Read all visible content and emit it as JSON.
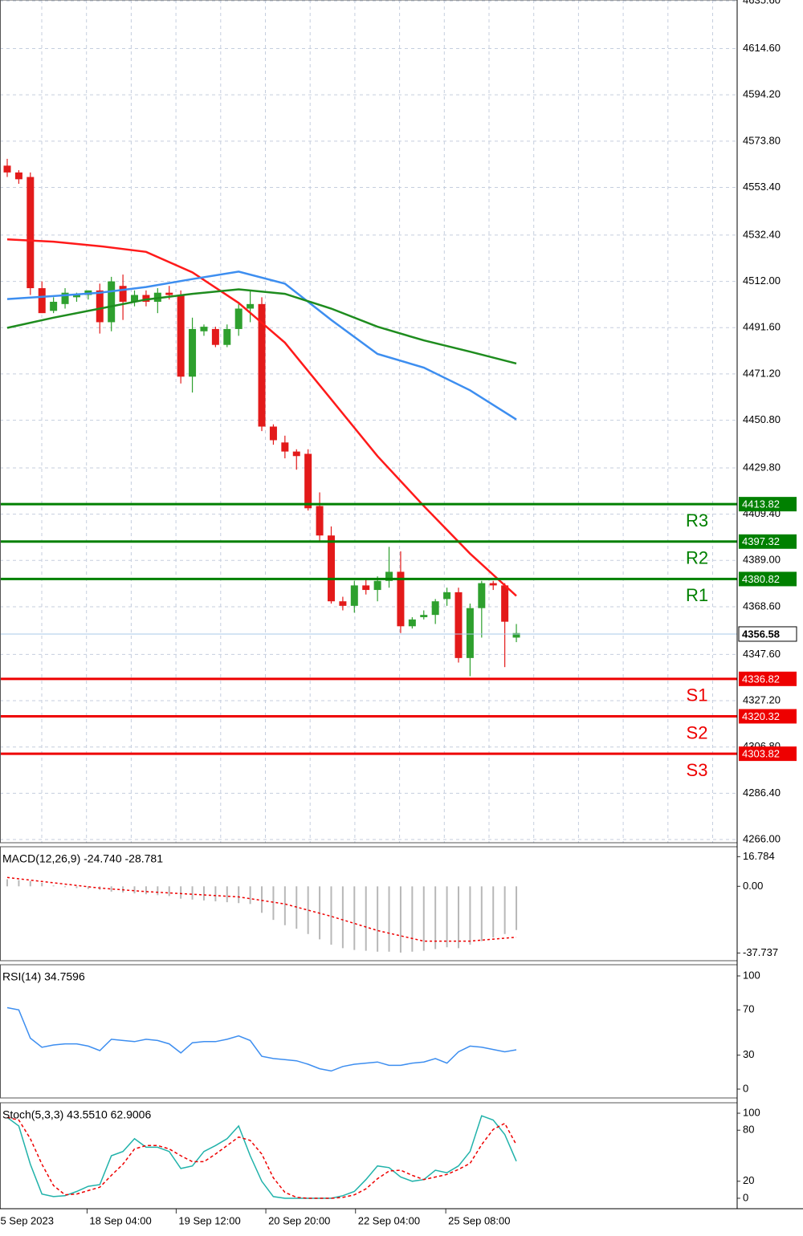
{
  "chart_data": [
    {
      "type": "candlestick",
      "open": [
        4563,
        4560,
        4558,
        4509,
        4499,
        4502,
        4505,
        4506,
        4508,
        4494,
        4510,
        4503,
        4506,
        4503,
        4507,
        4506,
        4470,
        4490,
        4491,
        4484,
        4491,
        4500,
        4502,
        4448,
        4441,
        4437,
        4436,
        4413,
        4400,
        4371,
        4369,
        4378,
        4376,
        4380,
        4384,
        4360,
        4364,
        4365,
        4372,
        4375,
        4346,
        4368,
        4379,
        4378,
        4355
      ],
      "high": [
        4566,
        4561,
        4560,
        4512,
        4505,
        4509,
        4507,
        4508,
        4511,
        4514,
        4515,
        4508,
        4508,
        4509,
        4510,
        4508,
        4496,
        4493,
        4492,
        4493,
        4503,
        4508,
        4505,
        4449,
        4444,
        4438,
        4438,
        4419,
        4404,
        4373,
        4380,
        4381,
        4382,
        4395,
        4393,
        4364,
        4367,
        4372,
        4377,
        4377,
        4370,
        4380,
        4380,
        4379,
        4361
      ],
      "low": [
        4558,
        4555,
        4506,
        4498,
        4498,
        4500,
        4503,
        4504,
        4489,
        4490,
        4495,
        4501,
        4501,
        4498,
        4504,
        4467,
        4463,
        4488,
        4483,
        4483,
        4488,
        4494,
        4446,
        4440,
        4434,
        4429,
        4411,
        4397,
        4370,
        4367,
        4366,
        4374,
        4371,
        4377,
        4357,
        4359,
        4363,
        4361,
        4369,
        4344,
        4338,
        4355,
        4376,
        4342,
        4353
      ],
      "close": [
        4560,
        4557,
        4509,
        4498,
        4503,
        4507,
        4506,
        4508,
        4494,
        4512,
        4503,
        4506,
        4503,
        4507,
        4506,
        4470,
        4491,
        4492,
        4484,
        4491,
        4500,
        4502,
        4448,
        4442,
        4437,
        4435,
        4412,
        4400,
        4371,
        4369,
        4378,
        4376,
        4380,
        4384,
        4360,
        4363,
        4365,
        4371,
        4375,
        4346,
        4368,
        4379,
        4378,
        4362,
        4357
      ],
      "up_color": "#2ea02e",
      "down_color": "#e31a1a",
      "ma_x": [
        0,
        4,
        8,
        12,
        16,
        20,
        24,
        28,
        32,
        36,
        40,
        44
      ],
      "overlays": [
        {
          "color": "#ff1a1a",
          "values": [
            4530.5,
            4529.5,
            4527.5,
            4525,
            4516,
            4502.5,
            4485,
            4460,
            4435,
            4413,
            4392,
            4373.4
          ]
        },
        {
          "color": "#3d8ef0",
          "values": [
            4504.2,
            4505.5,
            4507,
            4509.5,
            4513,
            4516.3,
            4511,
            4495,
            4480,
            4474,
            4464,
            4451.1
          ]
        },
        {
          "color": "#1e8c1e",
          "values": [
            4491.5,
            4496,
            4500,
            4504,
            4506.5,
            4508.5,
            4506.5,
            4500,
            4492,
            4486,
            4481,
            4475.8
          ]
        }
      ],
      "levels": [
        {
          "name": "R3",
          "value": 4413.82,
          "color": "#008000"
        },
        {
          "name": "R2",
          "value": 4397.32,
          "color": "#008000"
        },
        {
          "name": "R1",
          "value": 4380.82,
          "color": "#008000"
        },
        {
          "name": "S1",
          "value": 4336.82,
          "color": "#ee0000"
        },
        {
          "name": "S2",
          "value": 4320.32,
          "color": "#ee0000"
        },
        {
          "name": "S3",
          "value": 4303.82,
          "color": "#ee0000"
        }
      ],
      "last_price": 4356.58,
      "ylim": [
        4264.6,
        4636.0
      ],
      "yticks": [
        {
          "value": 4635.6,
          "label": "4635.60"
        },
        {
          "value": 4614.6,
          "label": "4614.60"
        },
        {
          "value": 4594.2,
          "label": "4594.20"
        },
        {
          "value": 4573.8,
          "label": "4573.80"
        },
        {
          "value": 4553.4,
          "label": "4553.40"
        },
        {
          "value": 4532.4,
          "label": "4532.40"
        },
        {
          "value": 4512,
          "label": "4512.00"
        },
        {
          "value": 4491.6,
          "label": "4491.60"
        },
        {
          "value": 4471.2,
          "label": "4471.20"
        },
        {
          "value": 4450.8,
          "label": "4450.80"
        },
        {
          "value": 4429.8,
          "label": "4429.80"
        },
        {
          "value": 4409.4,
          "label": "4409.40"
        },
        {
          "value": 4389,
          "label": "4389.00"
        },
        {
          "value": 4368.6,
          "label": "4368.60"
        },
        {
          "value": 4347.6,
          "label": "4347.60"
        },
        {
          "value": 4327.2,
          "label": "4327.20"
        },
        {
          "value": 4306.8,
          "label": "4306.80"
        },
        {
          "value": 4286.4,
          "label": "4286.40"
        },
        {
          "value": 4266,
          "label": "4266.00"
        }
      ],
      "xticks": [
        {
          "value": -0.8,
          "label": "5 Sep 2023"
        },
        {
          "value": 6.9,
          "label": "18 Sep 04:00"
        },
        {
          "value": 14.6,
          "label": "19 Sep 12:00"
        },
        {
          "value": 22.35,
          "label": "20 Sep 20:00"
        },
        {
          "value": 30.1,
          "label": "22 Sep 04:00"
        },
        {
          "value": 37.9,
          "label": "25 Sep 08:00"
        }
      ],
      "grid": true
    },
    {
      "type": "macd",
      "title": "MACD(12,26,9) -24.740 -28.781",
      "values": [
        4,
        3.5,
        3,
        2,
        0.5,
        -0.5,
        -1,
        -1.5,
        -2,
        -3,
        -3.5,
        -4,
        -4.5,
        -5,
        -5.5,
        -7,
        -7.5,
        -8,
        -8.5,
        -9,
        -9.5,
        -10,
        -15,
        -19,
        -22,
        -24,
        -27,
        -30,
        -33,
        -35,
        -36,
        -36.5,
        -37,
        -37,
        -37.5,
        -37,
        -36.5,
        -35.5,
        -34.5,
        -35,
        -33,
        -31,
        -29,
        -27,
        -24.74
      ],
      "color": "#b8b8b8",
      "signal": {
        "color": "#ee0000",
        "x": [
          0,
          4,
          8,
          12,
          16,
          20,
          24,
          28,
          32,
          36,
          40,
          44
        ],
        "values": [
          5,
          2,
          -1,
          -3,
          -4.5,
          -6,
          -10,
          -17,
          -25,
          -31,
          -31,
          -28.781
        ]
      },
      "ylim": [
        -42.1,
        22.4
      ],
      "yticks": [
        16.784,
        {
          "value": 0,
          "label": "0.00"
        },
        -37.737
      ],
      "grid": false
    },
    {
      "type": "line",
      "title": "RSI(14) 34.7596",
      "series": [
        {
          "color": "#3d8ef0",
          "values": [
            72,
            70,
            45,
            37,
            39,
            40,
            40,
            38,
            34,
            44,
            43,
            42,
            44,
            43,
            40,
            32,
            41,
            42,
            42,
            44,
            47,
            43,
            29,
            27,
            26,
            25,
            22,
            18,
            16,
            20,
            22,
            23,
            24,
            21,
            21,
            23,
            24,
            27,
            23,
            33,
            38,
            37,
            35,
            33,
            34.7596
          ]
        }
      ],
      "ylim": [
        -7.8,
        109.9
      ],
      "yticks": [
        100,
        70,
        30,
        0
      ],
      "grid": false
    },
    {
      "type": "line",
      "title": "Stoch(5,3,3) 43.5510 62.9006",
      "series": [
        {
          "color": "#20b2aa",
          "values": [
            95,
            85,
            40,
            5,
            2,
            3,
            8,
            14,
            16,
            50,
            55,
            70,
            60,
            60,
            55,
            35,
            38,
            55,
            62,
            70,
            85,
            50,
            20,
            2,
            0,
            0,
            0,
            0,
            0,
            3,
            8,
            22,
            38,
            36,
            25,
            20,
            22,
            33,
            30,
            38,
            55,
            97,
            92,
            75,
            43.551
          ]
        },
        {
          "color": "#ee0000",
          "dash": true,
          "values": [
            95,
            92,
            70,
            40,
            15,
            4,
            5,
            9,
            13,
            27,
            40,
            58,
            62,
            62,
            58,
            50,
            43,
            43,
            52,
            62,
            72,
            68,
            52,
            24,
            7,
            1,
            0,
            0,
            0,
            1,
            4,
            11,
            23,
            32,
            33,
            27,
            22,
            25,
            28,
            34,
            41,
            63,
            81,
            88,
            62.9006
          ]
        }
      ],
      "ylim": [
        -12.3,
        112.3
      ],
      "yticks": [
        100,
        80,
        20,
        0
      ],
      "grid": false
    }
  ]
}
